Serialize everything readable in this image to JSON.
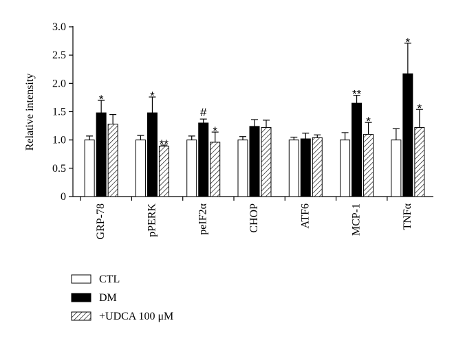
{
  "chart_data": {
    "type": "bar",
    "title": "",
    "xlabel": "",
    "ylabel": "Relative intensity",
    "ylim": [
      0,
      3.0
    ],
    "yticks": [
      "0",
      "0.5",
      "1.0",
      "1.5",
      "2.0",
      "2.5",
      "3.0"
    ],
    "grid": false,
    "legend_position": "bottom-left",
    "categories": [
      "GRP-78",
      "pPERK",
      "peIF2α",
      "CHOP",
      "ATF6",
      "MCP-1",
      "TNFα"
    ],
    "series": [
      {
        "name": "CTL",
        "fill": "white",
        "values": [
          1.0,
          1.0,
          1.0,
          1.0,
          1.0,
          1.0,
          1.0
        ],
        "errors": [
          0.07,
          0.08,
          0.07,
          0.06,
          0.05,
          0.13,
          0.2
        ],
        "annotations": [
          "",
          "",
          "",
          "",
          "",
          "",
          ""
        ]
      },
      {
        "name": "DM",
        "fill": "black",
        "values": [
          1.48,
          1.48,
          1.3,
          1.24,
          1.02,
          1.65,
          2.17
        ],
        "errors": [
          0.22,
          0.28,
          0.07,
          0.12,
          0.1,
          0.14,
          0.54
        ],
        "annotations": [
          "*",
          "*",
          "#",
          "",
          "",
          "**",
          "*"
        ]
      },
      {
        "name": "+UDCA 100 μM",
        "fill": "hatch",
        "values": [
          1.28,
          0.89,
          0.96,
          1.22,
          1.04,
          1.1,
          1.22
        ],
        "errors": [
          0.17,
          0.02,
          0.18,
          0.13,
          0.05,
          0.21,
          0.32
        ],
        "annotations": [
          "",
          "**",
          "*",
          "",
          "",
          "*",
          "*"
        ]
      }
    ]
  }
}
